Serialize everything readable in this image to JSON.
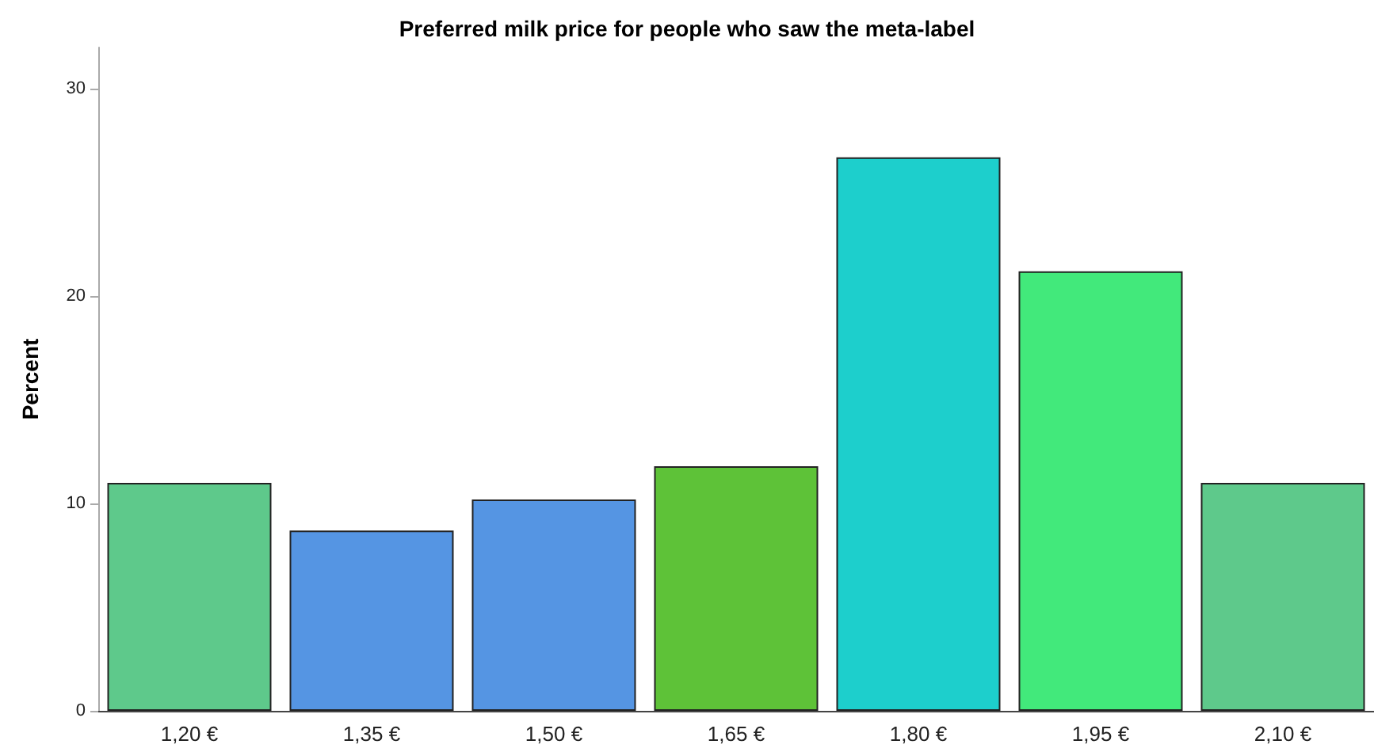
{
  "chart_data": {
    "type": "bar",
    "title": "Preferred milk price for people who saw the meta-label",
    "ylabel": "Percent",
    "categories": [
      "1,20 €",
      "1,35 €",
      "1,50 €",
      "1,65 €",
      "1,80 €",
      "1,95 €",
      "2,10 €"
    ],
    "values": [
      11.0,
      8.7,
      10.2,
      11.8,
      26.7,
      21.2,
      11.0
    ],
    "colors": [
      "#5ec98b",
      "#5595e3",
      "#5595e3",
      "#5ec238",
      "#1dcfcc",
      "#42e97b",
      "#5ec98b"
    ],
    "ylim": [
      0,
      32
    ],
    "yticks": [
      0,
      10,
      20,
      30
    ],
    "grid": false
  }
}
